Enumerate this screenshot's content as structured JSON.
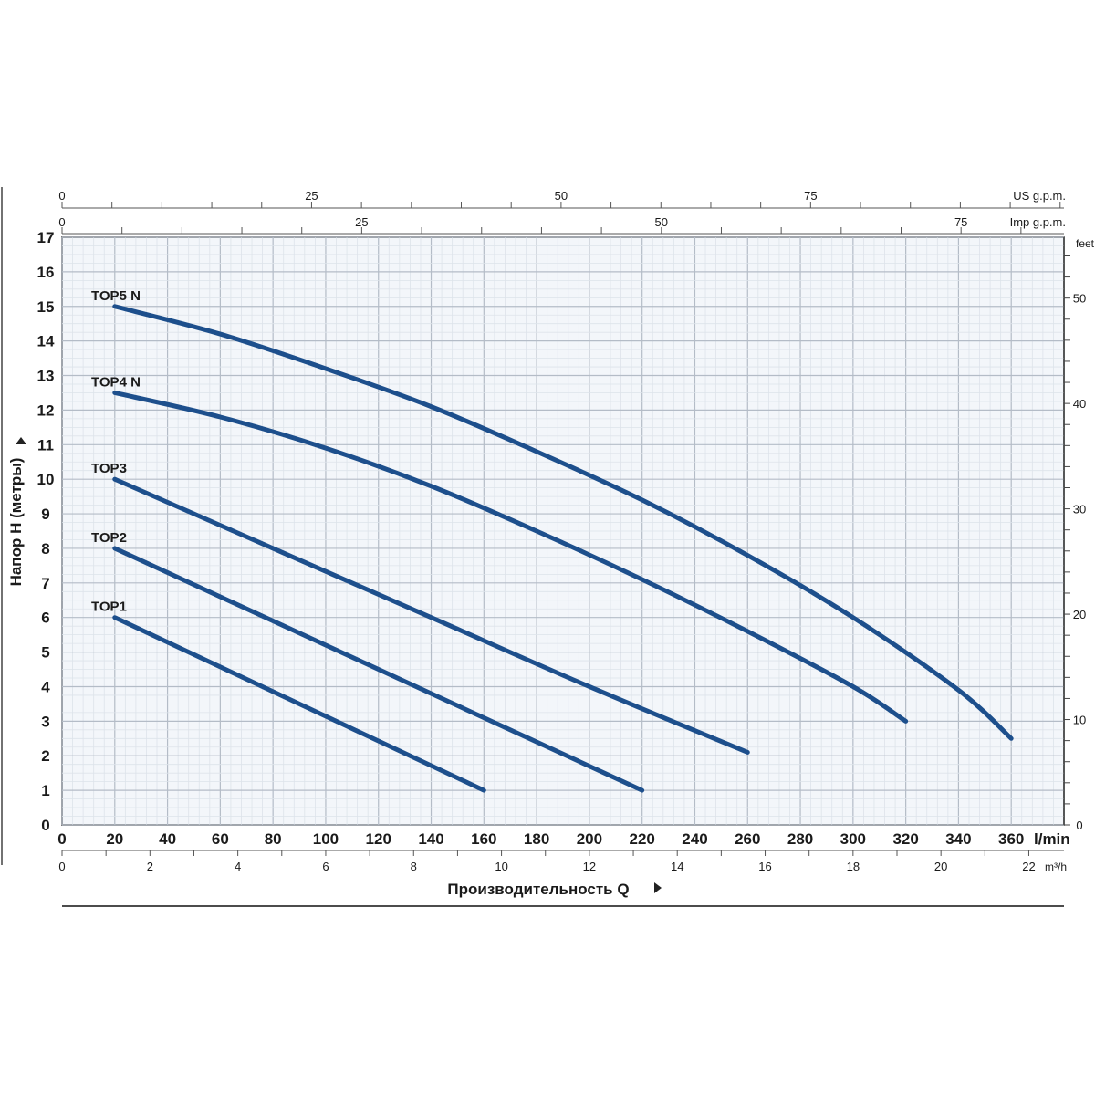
{
  "chart_data": {
    "type": "line",
    "title": "",
    "xlabel": "Производительность Q",
    "ylabel": "Напор H (метры)",
    "x_unit": "l/min",
    "xlim": [
      0,
      380
    ],
    "ylim": [
      0,
      17
    ],
    "x_ticks": [
      0,
      20,
      40,
      60,
      80,
      100,
      120,
      140,
      160,
      180,
      200,
      220,
      240,
      260,
      280,
      300,
      320,
      340,
      360
    ],
    "y_ticks": [
      0,
      1,
      2,
      3,
      4,
      5,
      6,
      7,
      8,
      9,
      10,
      11,
      12,
      13,
      14,
      15,
      16,
      17
    ],
    "secondary_axes": {
      "us_gpm": {
        "label": "US g.p.m.",
        "ticks": [
          0,
          25,
          50,
          75
        ]
      },
      "imp_gpm": {
        "label": "Imp g.p.m.",
        "ticks": [
          0,
          25,
          50,
          75
        ]
      },
      "m3h": {
        "label": "m³/h",
        "ticks": [
          0,
          2,
          4,
          6,
          8,
          10,
          12,
          14,
          16,
          18,
          20,
          22
        ]
      },
      "feet": {
        "label": "feet",
        "ticks": [
          0,
          10,
          20,
          30,
          40,
          50
        ]
      }
    },
    "grid": true,
    "line_color": "#1d4f8c",
    "series": [
      {
        "name": "TOP1",
        "x": [
          20,
          160
        ],
        "y": [
          6,
          1
        ]
      },
      {
        "name": "TOP2",
        "x": [
          20,
          220
        ],
        "y": [
          8,
          1
        ]
      },
      {
        "name": "TOP3",
        "x": [
          20,
          80,
          140,
          200,
          260
        ],
        "y": [
          10,
          8,
          6,
          4,
          2.1
        ]
      },
      {
        "name": "TOP4 N",
        "x": [
          20,
          60,
          100,
          140,
          180,
          220,
          260,
          300,
          320
        ],
        "y": [
          12.5,
          11.8,
          10.9,
          9.8,
          8.5,
          7.1,
          5.6,
          4,
          3
        ]
      },
      {
        "name": "TOP5 N",
        "x": [
          20,
          60,
          100,
          140,
          180,
          220,
          260,
          300,
          340,
          360
        ],
        "y": [
          15,
          14.2,
          13.2,
          12.1,
          10.8,
          9.4,
          7.8,
          6,
          3.9,
          2.5
        ]
      }
    ]
  }
}
